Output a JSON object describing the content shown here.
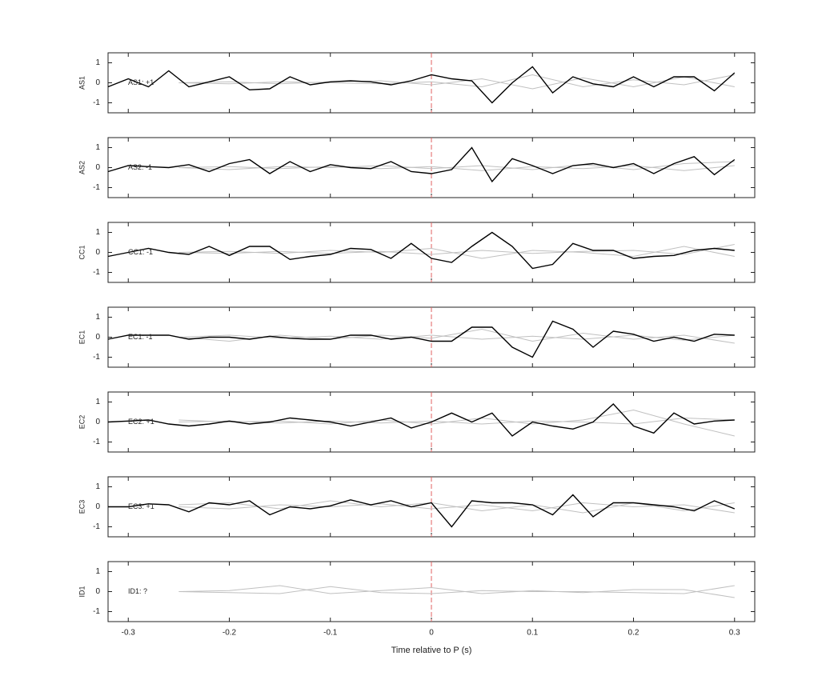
{
  "chart_data": [
    {
      "type": "line",
      "ylabel": "AS1",
      "annotation": "AS1: +1",
      "annotation_color": "#c00000",
      "xlim": [
        -0.32,
        0.32
      ],
      "xticks": [
        -0.3,
        -0.2,
        -0.1,
        0,
        0.1,
        0.2,
        0.3
      ],
      "ylim": [
        -1.5,
        1.5
      ],
      "yticks": [
        -1,
        0,
        1
      ],
      "vline": 0,
      "x": [
        -0.32,
        -0.3,
        -0.28,
        -0.26,
        -0.24,
        -0.22,
        -0.2,
        -0.18,
        -0.16,
        -0.14,
        -0.12,
        -0.1,
        -0.08,
        -0.06,
        -0.04,
        -0.02,
        0,
        0.02,
        0.04,
        0.06,
        0.08,
        0.1,
        0.12,
        0.14,
        0.16,
        0.18,
        0.2,
        0.22,
        0.24,
        0.26,
        0.28,
        0.3
      ],
      "series": [
        {
          "color": "#c0c0c0",
          "x": [
            -0.25,
            -0.2,
            -0.15,
            -0.1,
            -0.05,
            0,
            0.05,
            0.1,
            0.15,
            0.2,
            0.25,
            0.3
          ],
          "values": [
            0,
            0.05,
            -0.05,
            0.05,
            0.1,
            -0.1,
            0.2,
            -0.3,
            0.25,
            -0.2,
            0.3,
            -0.2
          ]
        },
        {
          "color": "#c0c0c0",
          "x": [
            -0.25,
            -0.2,
            -0.15,
            -0.1,
            -0.05,
            0,
            0.05,
            0.1,
            0.15,
            0.2,
            0.25,
            0.3
          ],
          "values": [
            0,
            -0.05,
            0.05,
            0,
            -0.05,
            0.05,
            -0.2,
            0.4,
            -0.2,
            0.15,
            -0.1,
            0.4
          ]
        },
        {
          "color": "#000000",
          "values": [
            -0.2,
            0.2,
            -0.2,
            0.6,
            -0.2,
            0.05,
            0.3,
            -0.35,
            -0.3,
            0.3,
            -0.1,
            0.05,
            0.1,
            0.05,
            -0.1,
            0.1,
            0.4,
            0.2,
            0.1,
            -1.0,
            0.0,
            0.8,
            -0.5,
            0.3,
            -0.05,
            -0.2,
            0.3,
            -0.2,
            0.3,
            0.3,
            -0.4,
            0.5
          ]
        }
      ]
    },
    {
      "type": "line",
      "ylabel": "AS2",
      "annotation": "AS2: -1",
      "annotation_color": "#00008b",
      "xlim": [
        -0.32,
        0.32
      ],
      "xticks": [
        -0.3,
        -0.2,
        -0.1,
        0,
        0.1,
        0.2,
        0.3
      ],
      "ylim": [
        -1.5,
        1.5
      ],
      "yticks": [
        -1,
        0,
        1
      ],
      "vline": 0,
      "x": [
        -0.32,
        -0.3,
        -0.28,
        -0.26,
        -0.24,
        -0.22,
        -0.2,
        -0.18,
        -0.16,
        -0.14,
        -0.12,
        -0.1,
        -0.08,
        -0.06,
        -0.04,
        -0.02,
        0,
        0.02,
        0.04,
        0.06,
        0.08,
        0.1,
        0.12,
        0.14,
        0.16,
        0.18,
        0.2,
        0.22,
        0.24,
        0.26,
        0.28,
        0.3
      ],
      "series": [
        {
          "color": "#c0c0c0",
          "x": [
            -0.25,
            -0.2,
            -0.15,
            -0.1,
            -0.05,
            0,
            0.05,
            0.1,
            0.15,
            0.2,
            0.25,
            0.3
          ],
          "values": [
            0,
            -0.1,
            0.05,
            0,
            0.1,
            -0.05,
            0.1,
            -0.1,
            0.15,
            -0.1,
            0.2,
            0.3
          ]
        },
        {
          "color": "#c0c0c0",
          "x": [
            -0.25,
            -0.2,
            -0.15,
            -0.1,
            -0.05,
            0,
            0.05,
            0.1,
            0.15,
            0.2,
            0.25,
            0.3
          ],
          "values": [
            0,
            0.05,
            -0.05,
            0.05,
            -0.05,
            0.05,
            -0.15,
            0.05,
            -0.05,
            0.1,
            -0.15,
            0.1
          ]
        },
        {
          "color": "#000000",
          "values": [
            -0.2,
            0.1,
            0.05,
            0.0,
            0.15,
            -0.2,
            0.2,
            0.4,
            -0.3,
            0.3,
            -0.2,
            0.15,
            0.0,
            -0.05,
            0.3,
            -0.2,
            -0.3,
            -0.1,
            1.0,
            -0.7,
            0.45,
            0.1,
            -0.3,
            0.1,
            0.2,
            0.0,
            0.2,
            -0.3,
            0.2,
            0.55,
            -0.35,
            0.4
          ]
        }
      ]
    },
    {
      "type": "line",
      "ylabel": "CC1",
      "annotation": "CC1: -1",
      "annotation_color": "#00008b",
      "xlim": [
        -0.32,
        0.32
      ],
      "xticks": [
        -0.3,
        -0.2,
        -0.1,
        0,
        0.1,
        0.2,
        0.3
      ],
      "ylim": [
        -1.5,
        1.5
      ],
      "yticks": [
        -1,
        0,
        1
      ],
      "vline": 0,
      "x": [
        -0.32,
        -0.3,
        -0.28,
        -0.26,
        -0.24,
        -0.22,
        -0.2,
        -0.18,
        -0.16,
        -0.14,
        -0.12,
        -0.1,
        -0.08,
        -0.06,
        -0.04,
        -0.02,
        0,
        0.02,
        0.04,
        0.06,
        0.08,
        0.1,
        0.12,
        0.14,
        0.16,
        0.18,
        0.2,
        0.22,
        0.24,
        0.26,
        0.28,
        0.3
      ],
      "series": [
        {
          "color": "#c0c0c0",
          "x": [
            -0.25,
            -0.2,
            -0.15,
            -0.1,
            -0.05,
            0,
            0.05,
            0.1,
            0.15,
            0.2,
            0.25,
            0.3
          ],
          "values": [
            0,
            0.05,
            -0.05,
            0.1,
            0,
            0.2,
            -0.3,
            0.1,
            0,
            -0.2,
            0.3,
            -0.2
          ]
        },
        {
          "color": "#c0c0c0",
          "x": [
            -0.25,
            -0.2,
            -0.15,
            -0.1,
            -0.05,
            0,
            0.05,
            0.1,
            0.15,
            0.2,
            0.25,
            0.3
          ],
          "values": [
            0,
            -0.05,
            0.05,
            -0.05,
            0.05,
            -0.1,
            0.1,
            -0.05,
            0.05,
            0.1,
            -0.1,
            0.4
          ]
        },
        {
          "color": "#000000",
          "values": [
            -0.2,
            0.0,
            0.2,
            0.0,
            -0.1,
            0.3,
            -0.15,
            0.3,
            0.3,
            -0.35,
            -0.2,
            -0.1,
            0.2,
            0.15,
            -0.3,
            0.45,
            -0.3,
            -0.5,
            0.3,
            1.0,
            0.3,
            -0.8,
            -0.6,
            0.45,
            0.1,
            0.1,
            -0.3,
            -0.2,
            -0.15,
            0.1,
            0.2,
            0.1
          ]
        }
      ]
    },
    {
      "type": "line",
      "ylabel": "EC1",
      "annotation": "EC1: -1",
      "annotation_color": "#00008b",
      "xlim": [
        -0.32,
        0.32
      ],
      "xticks": [
        -0.3,
        -0.2,
        -0.1,
        0,
        0.1,
        0.2,
        0.3
      ],
      "ylim": [
        -1.5,
        1.5
      ],
      "yticks": [
        -1,
        0,
        1
      ],
      "vline": 0,
      "x": [
        -0.32,
        -0.3,
        -0.28,
        -0.26,
        -0.24,
        -0.22,
        -0.2,
        -0.18,
        -0.16,
        -0.14,
        -0.12,
        -0.1,
        -0.08,
        -0.06,
        -0.04,
        -0.02,
        0,
        0.02,
        0.04,
        0.06,
        0.08,
        0.1,
        0.12,
        0.14,
        0.16,
        0.18,
        0.2,
        0.22,
        0.24,
        0.26,
        0.28,
        0.3
      ],
      "series": [
        {
          "color": "#c0c0c0",
          "x": [
            -0.25,
            -0.2,
            -0.15,
            -0.1,
            -0.05,
            0,
            0.05,
            0.1,
            0.15,
            0.2,
            0.25,
            0.3
          ],
          "values": [
            0,
            -0.2,
            0.1,
            -0.1,
            0.1,
            -0.05,
            0.4,
            -0.2,
            0.2,
            -0.1,
            0.1,
            -0.3
          ]
        },
        {
          "color": "#c0c0c0",
          "x": [
            -0.25,
            -0.2,
            -0.15,
            -0.1,
            -0.05,
            0,
            0.05,
            0.1,
            0.15,
            0.2,
            0.25,
            0.3
          ],
          "values": [
            0,
            0.1,
            -0.05,
            0.05,
            -0.1,
            0.1,
            -0.1,
            0.05,
            -0.1,
            0.1,
            -0.15,
            0.1
          ]
        },
        {
          "color": "#000000",
          "values": [
            -0.1,
            0.1,
            0.1,
            0.1,
            -0.1,
            0.0,
            0.0,
            -0.1,
            0.05,
            -0.05,
            -0.1,
            -0.1,
            0.1,
            0.1,
            -0.1,
            0.0,
            -0.2,
            -0.2,
            0.5,
            0.5,
            -0.5,
            -1.0,
            0.8,
            0.4,
            -0.5,
            0.3,
            0.15,
            -0.2,
            0.0,
            -0.2,
            0.15,
            0.1
          ]
        }
      ]
    },
    {
      "type": "line",
      "ylabel": "EC2",
      "annotation": "EC2: +1",
      "annotation_color": "#c00000",
      "xlim": [
        -0.32,
        0.32
      ],
      "xticks": [
        -0.3,
        -0.2,
        -0.1,
        0,
        0.1,
        0.2,
        0.3
      ],
      "ylim": [
        -1.5,
        1.5
      ],
      "yticks": [
        -1,
        0,
        1
      ],
      "vline": 0,
      "x": [
        -0.32,
        -0.3,
        -0.28,
        -0.26,
        -0.24,
        -0.22,
        -0.2,
        -0.18,
        -0.16,
        -0.14,
        -0.12,
        -0.1,
        -0.08,
        -0.06,
        -0.04,
        -0.02,
        0,
        0.02,
        0.04,
        0.06,
        0.08,
        0.1,
        0.12,
        0.14,
        0.16,
        0.18,
        0.2,
        0.22,
        0.24,
        0.26,
        0.28,
        0.3
      ],
      "series": [
        {
          "color": "#c0c0c0",
          "x": [
            -0.25,
            -0.2,
            -0.15,
            -0.1,
            -0.05,
            0,
            0.05,
            0.1,
            0.15,
            0.2,
            0.25,
            0.3
          ],
          "values": [
            0.1,
            0,
            0.05,
            -0.1,
            0.1,
            -0.1,
            0.2,
            -0.1,
            0.1,
            0.6,
            -0.1,
            -0.7
          ]
        },
        {
          "color": "#c0c0c0",
          "x": [
            -0.25,
            -0.2,
            -0.15,
            -0.1,
            -0.05,
            0,
            0.05,
            0.1,
            0.15,
            0.2,
            0.25,
            0.3
          ],
          "values": [
            0,
            0.05,
            -0.05,
            0.05,
            -0.05,
            0.05,
            -0.1,
            0.05,
            0,
            -0.1,
            0.2,
            0.1
          ]
        },
        {
          "color": "#000000",
          "values": [
            0.0,
            0.05,
            0.1,
            -0.1,
            -0.2,
            -0.1,
            0.05,
            -0.1,
            0.0,
            0.2,
            0.1,
            0.0,
            -0.2,
            0.0,
            0.2,
            -0.3,
            0.0,
            0.45,
            0.0,
            0.45,
            -0.7,
            0.0,
            -0.2,
            -0.35,
            0.0,
            0.9,
            -0.2,
            -0.55,
            0.45,
            -0.1,
            0.05,
            0.1
          ]
        }
      ]
    },
    {
      "type": "line",
      "ylabel": "EC3",
      "annotation": "EC3: +1",
      "annotation_color": "#c00000",
      "xlim": [
        -0.32,
        0.32
      ],
      "xticks": [
        -0.3,
        -0.2,
        -0.1,
        0,
        0.1,
        0.2,
        0.3
      ],
      "ylim": [
        -1.5,
        1.5
      ],
      "yticks": [
        -1,
        0,
        1
      ],
      "vline": 0,
      "x": [
        -0.32,
        -0.3,
        -0.28,
        -0.26,
        -0.24,
        -0.22,
        -0.2,
        -0.18,
        -0.16,
        -0.14,
        -0.12,
        -0.1,
        -0.08,
        -0.06,
        -0.04,
        -0.02,
        0,
        0.02,
        0.04,
        0.06,
        0.08,
        0.1,
        0.12,
        0.14,
        0.16,
        0.18,
        0.2,
        0.22,
        0.24,
        0.26,
        0.28,
        0.3
      ],
      "series": [
        {
          "color": "#c0c0c0",
          "x": [
            -0.25,
            -0.2,
            -0.15,
            -0.1,
            -0.05,
            0,
            0.05,
            0.1,
            0.15,
            0.2,
            0.25,
            0.3
          ],
          "values": [
            0.1,
            0.2,
            -0.1,
            0.3,
            0,
            0.2,
            -0.2,
            0.1,
            -0.3,
            0.2,
            -0.2,
            0.2
          ]
        },
        {
          "color": "#c0c0c0",
          "x": [
            -0.25,
            -0.2,
            -0.15,
            -0.1,
            -0.05,
            0,
            0.05,
            0.1,
            0.15,
            0.2,
            0.25,
            0.3
          ],
          "values": [
            0,
            -0.1,
            0.1,
            0,
            0.15,
            -0.1,
            0.1,
            -0.2,
            0.2,
            0,
            0.1,
            -0.3
          ]
        },
        {
          "color": "#000000",
          "values": [
            0.0,
            0.0,
            0.15,
            0.1,
            -0.25,
            0.2,
            0.1,
            0.3,
            -0.4,
            0.0,
            -0.1,
            0.05,
            0.35,
            0.1,
            0.3,
            0.0,
            0.2,
            -1.0,
            0.3,
            0.2,
            0.2,
            0.1,
            -0.4,
            0.6,
            -0.5,
            0.2,
            0.2,
            0.1,
            0.0,
            -0.2,
            0.3,
            -0.1
          ]
        }
      ]
    },
    {
      "type": "line",
      "ylabel": "ID1",
      "annotation": "ID1: ?",
      "annotation_color": "#808080",
      "xlim": [
        -0.32,
        0.32
      ],
      "xticks": [
        -0.3,
        -0.2,
        -0.1,
        0,
        0.1,
        0.2,
        0.3
      ],
      "ylim": [
        -1.5,
        1.5
      ],
      "yticks": [
        -1,
        0,
        1
      ],
      "vline": 0,
      "xlabel": "Time relative to P (s)",
      "series": [
        {
          "color": "#c0c0c0",
          "x": [
            -0.25,
            -0.2,
            -0.15,
            -0.1,
            -0.05,
            0,
            0.05,
            0.1,
            0.15,
            0.2,
            0.25,
            0.3
          ],
          "values": [
            0,
            0.05,
            0.3,
            -0.1,
            0.05,
            0.2,
            -0.1,
            0.05,
            -0.05,
            0.1,
            0.1,
            -0.3
          ]
        },
        {
          "color": "#c0c0c0",
          "x": [
            -0.25,
            -0.2,
            -0.15,
            -0.1,
            -0.05,
            0,
            0.05,
            0.1,
            0.15,
            0.2,
            0.25,
            0.3
          ],
          "values": [
            0,
            -0.05,
            -0.1,
            0.25,
            -0.05,
            -0.1,
            0.05,
            0,
            0,
            -0.05,
            -0.1,
            0.3
          ]
        }
      ]
    }
  ]
}
